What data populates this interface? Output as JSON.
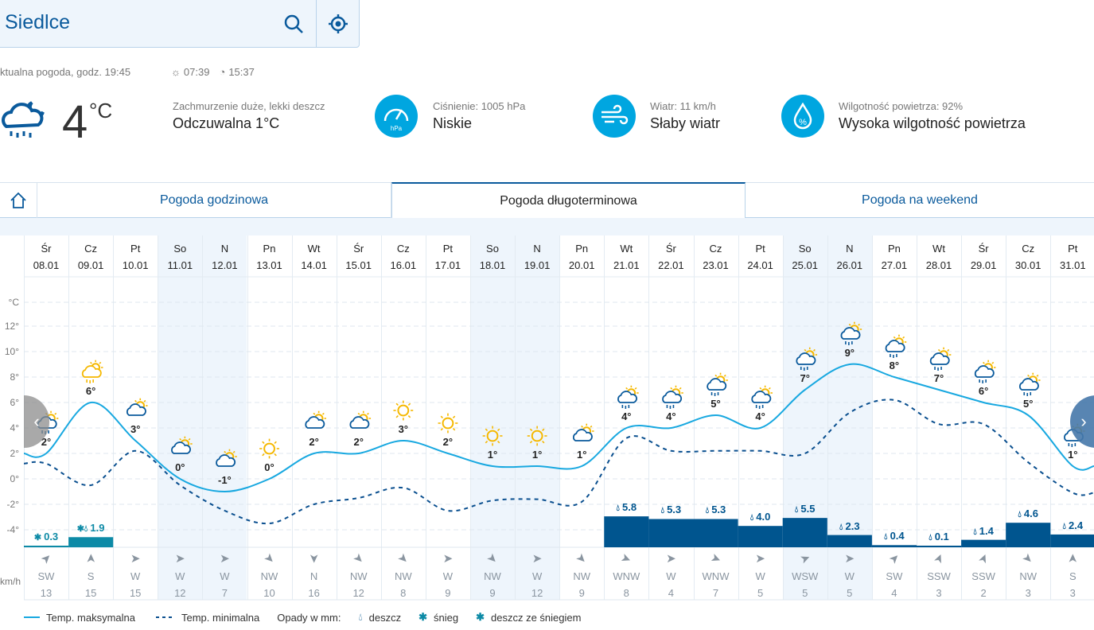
{
  "search": {
    "city": "Siedlce"
  },
  "current": {
    "label": "ktualna pogoda, godz. 19:45",
    "sunrise": "07:39",
    "sunset": "15:37",
    "temp": "4",
    "unit": "°C",
    "condition": "Zachmurzenie duże, lekki deszcz",
    "feels": "Odczuwalna 1°C",
    "pressure_label": "Ciśnienie: 1005 hPa",
    "pressure_value": "Niskie",
    "pressure_unit": "hPa",
    "wind_label": "Wiatr: 11 km/h",
    "wind_value": "Słaby wiatr",
    "humidity_label": "Wilgotność powietrza: 92%",
    "humidity_value": "Wysoka wilgotność powietrza"
  },
  "tabs": [
    {
      "label": "Pogoda godzinowa"
    },
    {
      "label": "Pogoda długoterminowa",
      "active": true
    },
    {
      "label": "Pogoda na weekend"
    }
  ],
  "axis": {
    "unit": "°C",
    "ticks": [
      "12°",
      "10°",
      "8°",
      "6°",
      "4°",
      "2°",
      "0°",
      "-2°",
      "-4°"
    ],
    "wind_unit": "km/h"
  },
  "colors": {
    "max": "#18a8e0",
    "min": "#0a4f8f",
    "precip": "#00558f",
    "snow": "#0d8aa6",
    "weekend": "#eef5fc"
  },
  "chart_data": {
    "type": "line",
    "days": [
      {
        "d": "Śr",
        "date": "08.01",
        "max": 2,
        "min": 1.2,
        "icon": "cloud-sun-rain",
        "precip": "0.3",
        "ptype": "snow",
        "wdir": "SW",
        "wspd": "13",
        "we": false
      },
      {
        "d": "Cz",
        "date": "09.01",
        "max": 6,
        "min": -0.5,
        "icon": "sun-snow",
        "precip": "1.9",
        "ptype": "mixed",
        "wdir": "S",
        "wspd": "15",
        "we": false
      },
      {
        "d": "Pt",
        "date": "10.01",
        "max": 3,
        "min": 2.2,
        "icon": "cloud-sun",
        "precip": null,
        "ptype": null,
        "wdir": "W",
        "wspd": "15",
        "we": false
      },
      {
        "d": "So",
        "date": "11.01",
        "max": 0,
        "min": -0.5,
        "icon": "sun-cloud",
        "precip": null,
        "ptype": null,
        "wdir": "W",
        "wspd": "12",
        "we": true
      },
      {
        "d": "N",
        "date": "12.01",
        "max": -1,
        "min": -2.5,
        "icon": "sun-cloud",
        "precip": null,
        "ptype": null,
        "wdir": "W",
        "wspd": "7",
        "we": true
      },
      {
        "d": "Pn",
        "date": "13.01",
        "max": 0,
        "min": -3.5,
        "icon": "sun",
        "precip": null,
        "ptype": null,
        "wdir": "NW",
        "wspd": "10",
        "we": false
      },
      {
        "d": "Wt",
        "date": "14.01",
        "max": 2,
        "min": -2,
        "icon": "sun-cloud",
        "precip": null,
        "ptype": null,
        "wdir": "N",
        "wspd": "16",
        "we": false
      },
      {
        "d": "Śr",
        "date": "15.01",
        "max": 2,
        "min": -1.5,
        "icon": "sun-cloud",
        "precip": null,
        "ptype": null,
        "wdir": "NW",
        "wspd": "12",
        "we": false
      },
      {
        "d": "Cz",
        "date": "16.01",
        "max": 3,
        "min": -0.7,
        "icon": "sun",
        "precip": null,
        "ptype": null,
        "wdir": "NW",
        "wspd": "8",
        "we": false
      },
      {
        "d": "Pt",
        "date": "17.01",
        "max": 2,
        "min": -2.5,
        "icon": "sun",
        "precip": null,
        "ptype": null,
        "wdir": "W",
        "wspd": "9",
        "we": false
      },
      {
        "d": "So",
        "date": "18.01",
        "max": 1,
        "min": -1.7,
        "icon": "sun",
        "precip": null,
        "ptype": null,
        "wdir": "NW",
        "wspd": "9",
        "we": true
      },
      {
        "d": "N",
        "date": "19.01",
        "max": 1,
        "min": -1.6,
        "icon": "sun",
        "precip": null,
        "ptype": null,
        "wdir": "W",
        "wspd": "12",
        "we": true
      },
      {
        "d": "Pn",
        "date": "20.01",
        "max": 1,
        "min": -1.8,
        "icon": "sun-cloud",
        "precip": null,
        "ptype": null,
        "wdir": "NW",
        "wspd": "9",
        "we": false
      },
      {
        "d": "Wt",
        "date": "21.01",
        "max": 4,
        "min": 3.2,
        "icon": "rain-sun",
        "precip": "5.8",
        "ptype": "rain",
        "wdir": "WNW",
        "wspd": "8",
        "we": false
      },
      {
        "d": "Śr",
        "date": "22.01",
        "max": 4,
        "min": 2.2,
        "icon": "rain-sun",
        "precip": "5.3",
        "ptype": "rain",
        "wdir": "W",
        "wspd": "4",
        "we": false
      },
      {
        "d": "Cz",
        "date": "23.01",
        "max": 5,
        "min": 2.2,
        "icon": "rain-sun",
        "precip": "5.3",
        "ptype": "rain",
        "wdir": "WNW",
        "wspd": "7",
        "we": false
      },
      {
        "d": "Pt",
        "date": "24.01",
        "max": 4,
        "min": 2.2,
        "icon": "rain-sun",
        "precip": "4.0",
        "ptype": "rain",
        "wdir": "W",
        "wspd": "5",
        "we": false
      },
      {
        "d": "So",
        "date": "25.01",
        "max": 7,
        "min": 2.0,
        "icon": "rain-sun",
        "precip": "5.5",
        "ptype": "rain",
        "wdir": "WSW",
        "wspd": "5",
        "we": true
      },
      {
        "d": "N",
        "date": "26.01",
        "max": 9,
        "min": 5.2,
        "icon": "rain-sun",
        "precip": "2.3",
        "ptype": "rain",
        "wdir": "W",
        "wspd": "5",
        "we": true
      },
      {
        "d": "Pn",
        "date": "27.01",
        "max": 8,
        "min": 6.2,
        "icon": "rain-sun",
        "precip": "0.4",
        "ptype": "rain",
        "wdir": "SW",
        "wspd": "4",
        "we": false
      },
      {
        "d": "Wt",
        "date": "28.01",
        "max": 7,
        "min": 4.3,
        "icon": "rain-sun",
        "precip": "0.1",
        "ptype": "rain",
        "wdir": "SSW",
        "wspd": "3",
        "we": false
      },
      {
        "d": "Śr",
        "date": "29.01",
        "max": 6,
        "min": 4.3,
        "icon": "rain-sun",
        "precip": "1.4",
        "ptype": "rain",
        "wdir": "SSW",
        "wspd": "2",
        "we": false
      },
      {
        "d": "Cz",
        "date": "30.01",
        "max": 5,
        "min": 1.3,
        "icon": "rain-sun",
        "precip": "4.6",
        "ptype": "rain",
        "wdir": "NW",
        "wspd": "3",
        "we": false
      },
      {
        "d": "Pt",
        "date": "31.01",
        "max": 1,
        "min": -1.1,
        "icon": "rain-sun",
        "precip": "2.4",
        "ptype": "rain",
        "wdir": "S",
        "wspd": "3",
        "we": false
      }
    ],
    "ylim": [
      -5,
      13
    ]
  },
  "legend": {
    "max": "Temp. maksymalna",
    "min": "Temp. minimalna",
    "precip": "Opady w mm:",
    "rain": "deszcz",
    "snow": "śnieg",
    "mixed": "deszcz ze śniegiem"
  }
}
